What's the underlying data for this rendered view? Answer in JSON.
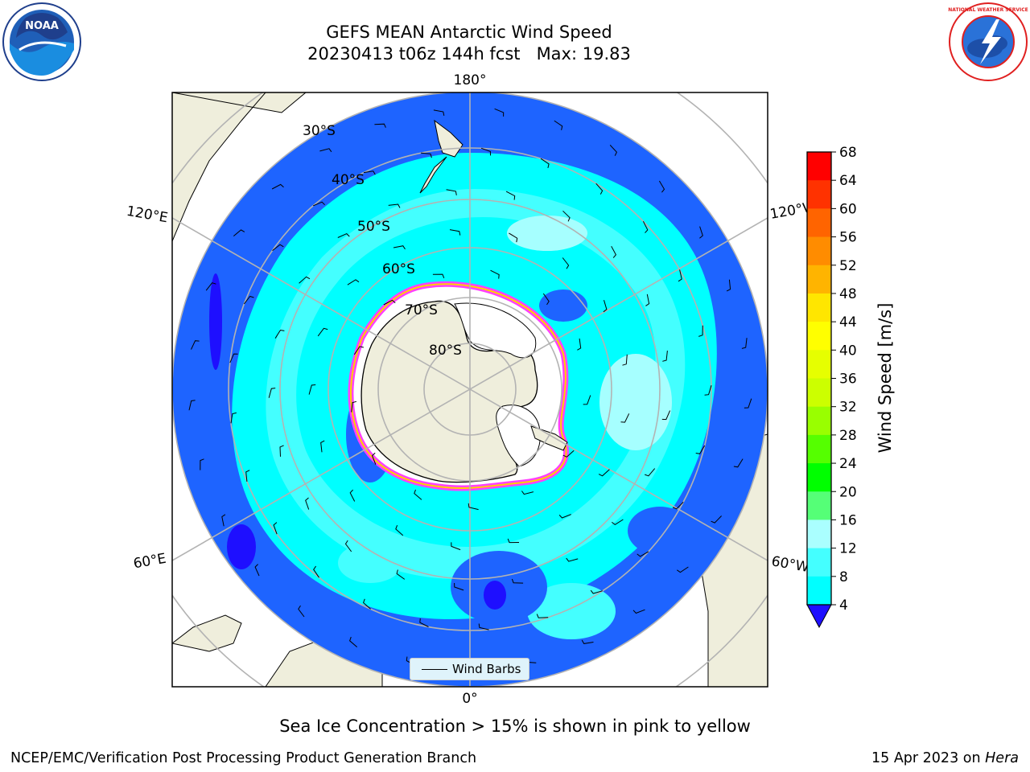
{
  "header": {
    "title_line1": "GEFS MEAN Antarctic Wind Speed",
    "title_line2": "20230413 t06z 144h fcst   Max: 19.83"
  },
  "map": {
    "projection": "south-polar-stereographic",
    "lon_labels": {
      "top": "180°",
      "bottom": "0°",
      "upper_left": "120°E",
      "lower_left": "60°E",
      "upper_right": "120°W",
      "lower_right": "60°W"
    },
    "lat_labels": [
      "30°S",
      "40°S",
      "50°S",
      "60°S",
      "70°S",
      "80°S"
    ],
    "legend_label": "Wind Barbs",
    "colors": {
      "ocean_4_8": "#1e64ff",
      "ocean_8_12": "#00ffff",
      "ocean_12_16": "#44ffff",
      "ocean_16_20": "#a6ffff",
      "land": "#efeedc",
      "sea_ice_edge": "#ff40ff",
      "sea_ice_inner": "#ffd000",
      "grid": "#b3b3b3"
    }
  },
  "colorbar": {
    "label": "Wind Speed [m/s]",
    "ticks": [
      "68",
      "64",
      "60",
      "56",
      "52",
      "48",
      "44",
      "40",
      "36",
      "32",
      "28",
      "24",
      "20",
      "16",
      "12",
      "8",
      "4"
    ],
    "colors": [
      "#ff0000",
      "#ff3200",
      "#ff6400",
      "#ff8c00",
      "#ffb400",
      "#ffe600",
      "#ffff00",
      "#e6ff00",
      "#ccff00",
      "#99ff00",
      "#55ff00",
      "#00ff00",
      "#55ff77",
      "#aaffff",
      "#44ffff",
      "#00ffff",
      "#1e64ff"
    ],
    "under_color": "#1e0fff"
  },
  "caption": "Sea Ice Concentration > 15% is shown in pink to yellow",
  "footer": {
    "left": "NCEP/EMC/Verification Post Processing Product Generation Branch",
    "right_date": "15 Apr 2023 on ",
    "right_host": "Hera"
  },
  "logos": {
    "left": "noaa-logo",
    "left_text": "NOAA",
    "right": "nws-logo",
    "right_text": "NATIONAL WEATHER SERVICE"
  }
}
